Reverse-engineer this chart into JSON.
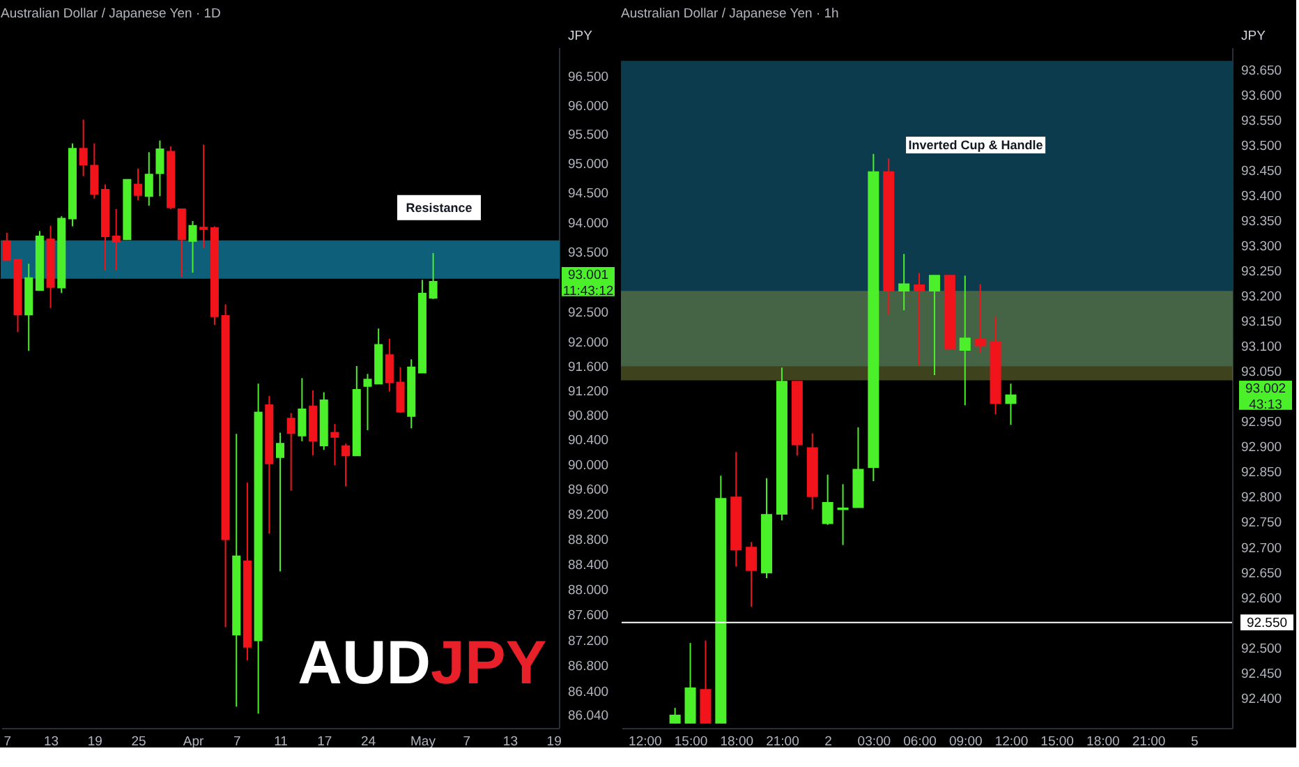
{
  "chart_data": [
    {
      "type": "candlestick",
      "title": "Australian Dollar / Japanese Yen · 1D",
      "ylabel": "JPY",
      "log": true,
      "categories": [
        "7",
        null,
        null,
        null,
        "13",
        null,
        null,
        null,
        "19",
        null,
        null,
        null,
        "25",
        null,
        null,
        null,
        null,
        "Apr",
        null,
        null,
        null,
        "7",
        null,
        null,
        null,
        "11",
        null,
        null,
        null,
        "17",
        null,
        null,
        null,
        "24",
        null,
        null,
        null,
        null,
        "May",
        null,
        null,
        null,
        "7",
        null,
        null,
        null,
        "13",
        null,
        null,
        null,
        "19"
      ],
      "ohlc": [
        [
          93.68,
          93.82,
          93.36,
          93.36
        ],
        [
          93.37,
          93.37,
          92.16,
          92.45
        ],
        [
          92.45,
          93.3,
          91.85,
          93.06
        ],
        [
          92.86,
          93.85,
          92.86,
          93.76
        ],
        [
          93.71,
          93.94,
          92.56,
          92.91
        ],
        [
          92.9,
          94.1,
          92.81,
          94.06
        ],
        [
          94.06,
          95.34,
          93.93,
          95.25
        ],
        [
          95.25,
          95.75,
          94.78,
          94.98
        ],
        [
          94.96,
          95.34,
          94.4,
          94.48
        ],
        [
          94.55,
          94.64,
          93.19,
          93.76
        ],
        [
          93.76,
          94.22,
          93.19,
          93.67
        ],
        [
          93.71,
          94.72,
          93.71,
          94.72
        ],
        [
          94.64,
          94.91,
          94.37,
          94.46
        ],
        [
          94.44,
          95.19,
          94.28,
          94.81
        ],
        [
          94.83,
          95.39,
          94.44,
          95.24
        ],
        [
          95.2,
          95.29,
          94.22,
          94.25
        ],
        [
          94.22,
          94.22,
          93.08,
          93.71
        ],
        [
          93.68,
          94.02,
          93.15,
          93.94
        ],
        [
          93.91,
          95.32,
          93.56,
          93.88
        ],
        [
          93.9,
          93.93,
          92.28,
          92.42
        ],
        [
          92.43,
          92.62,
          87.4,
          88.79
        ],
        [
          87.28,
          90.49,
          86.16,
          88.52
        ],
        [
          88.44,
          89.7,
          86.88,
          87.09
        ],
        [
          87.19,
          91.31,
          86.05,
          90.84
        ],
        [
          90.96,
          91.11,
          88.88,
          90.01
        ],
        [
          90.11,
          90.51,
          88.28,
          90.33
        ],
        [
          90.74,
          90.83,
          89.57,
          90.5
        ],
        [
          90.46,
          91.4,
          90.37,
          90.89
        ],
        [
          90.94,
          91.2,
          90.14,
          90.38
        ],
        [
          90.3,
          91.17,
          90.23,
          91.04
        ],
        [
          90.51,
          90.65,
          89.98,
          90.44
        ],
        [
          90.29,
          90.33,
          89.64,
          90.14
        ],
        [
          90.14,
          91.6,
          90.14,
          91.21
        ],
        [
          91.27,
          91.47,
          90.55,
          91.38
        ],
        [
          91.31,
          92.22,
          91.31,
          91.95
        ],
        [
          91.78,
          92.05,
          91.18,
          91.33
        ],
        [
          91.33,
          91.58,
          90.83,
          90.85
        ],
        [
          90.78,
          91.71,
          90.58,
          91.58
        ],
        [
          91.49,
          93.03,
          91.49,
          92.8
        ],
        [
          92.73,
          93.48,
          92.71,
          93.0
        ],
        null,
        null,
        null,
        null,
        null,
        null,
        null,
        null,
        null,
        null,
        null
      ],
      "colors": [
        "#f2141b",
        "#f2141b",
        "#4cf02a",
        "#4cf02a",
        "#f2141b",
        "#4cf02a",
        "#4cf02a",
        "#f2141b",
        "#f2141b",
        "#f2141b",
        "#f2141b",
        "#4cf02a",
        "#f2141b",
        "#4cf02a",
        "#4cf02a",
        "#f2141b",
        "#f2141b",
        "#4cf02a",
        "#f2141b",
        "#f2141b",
        "#f2141b",
        "#4cf02a",
        "#f2141b",
        "#4cf02a",
        "#f2141b",
        "#4cf02a",
        "#f2141b",
        "#4cf02a",
        "#f2141b",
        "#4cf02a",
        "#f2141b",
        "#f2141b",
        "#4cf02a",
        "#4cf02a",
        "#4cf02a",
        "#f2141b",
        "#f2141b",
        "#4cf02a",
        "#4cf02a",
        "#4cf02a",
        null,
        null,
        null,
        null,
        null,
        null,
        null,
        null,
        null,
        null,
        null
      ],
      "ylim": [
        85.83,
        97.0
      ],
      "yticks": [
        {
          "value": 96.5,
          "label": "96.500"
        },
        {
          "value": 96,
          "label": "96.000"
        },
        {
          "value": 95.5,
          "label": "95.500"
        },
        {
          "value": 95,
          "label": "95.000"
        },
        {
          "value": 94.5,
          "label": "94.500"
        },
        {
          "value": 94,
          "label": "94.000"
        },
        {
          "value": 93.5,
          "label": "93.500"
        },
        {
          "value": 92.5,
          "label": "92.500"
        },
        {
          "value": 92,
          "label": "92.000"
        },
        {
          "value": 91.6,
          "label": "91.600"
        },
        {
          "value": 91.2,
          "label": "91.200"
        },
        {
          "value": 90.8,
          "label": "90.800"
        },
        {
          "value": 90.4,
          "label": "90.400"
        },
        {
          "value": 90,
          "label": "90.000"
        },
        {
          "value": 89.6,
          "label": "89.600"
        },
        {
          "value": 89.2,
          "label": "89.200"
        },
        {
          "value": 88.8,
          "label": "88.800"
        },
        {
          "value": 88.4,
          "label": "88.400"
        },
        {
          "value": 88,
          "label": "88.000"
        },
        {
          "value": 87.6,
          "label": "87.600"
        },
        {
          "value": 87.2,
          "label": "87.200"
        },
        {
          "value": 86.8,
          "label": "86.800"
        },
        {
          "value": 86.4,
          "label": "86.400"
        },
        {
          "value": 86.04,
          "label": "86.040"
        }
      ],
      "bands": [
        {
          "axis": "y",
          "from": 93.06,
          "to": 93.68,
          "label": "Resistance",
          "color": "#0d5f7a"
        }
      ],
      "annotations": [
        "93.001\n11:43:12",
        "AUD",
        "JPY"
      ],
      "grid": false
    },
    {
      "type": "candlestick",
      "title": "Australian Dollar / Japanese Yen · 1h",
      "ylabel": "JPY",
      "categories": [
        null,
        "12:00",
        null,
        null,
        "15:00",
        null,
        null,
        "18:00",
        null,
        null,
        "21:00",
        null,
        null,
        "2",
        null,
        null,
        "03:00",
        null,
        null,
        "06:00",
        null,
        null,
        "09:00",
        null,
        null,
        "12:00",
        null,
        null,
        "15:00",
        null,
        null,
        "18:00",
        null,
        null,
        "21:00",
        null,
        null,
        "5",
        null,
        null
      ],
      "ohlc": [
        null,
        null,
        null,
        [
          92.35,
          92.38,
          92.35,
          92.365
        ],
        [
          92.35,
          92.509,
          92.35,
          92.419
        ],
        [
          92.416,
          92.514,
          92.35,
          92.35
        ],
        [
          92.35,
          92.842,
          92.35,
          92.796
        ],
        [
          92.799,
          92.889,
          92.661,
          92.695
        ],
        [
          92.699,
          92.71,
          92.581,
          92.654
        ],
        [
          92.649,
          92.837,
          92.638,
          92.764
        ],
        [
          92.766,
          93.057,
          92.753,
          93.029
        ],
        [
          93.029,
          93.029,
          92.882,
          92.904
        ],
        [
          92.897,
          92.926,
          92.775,
          92.801
        ],
        [
          92.747,
          92.844,
          92.744,
          92.788
        ],
        [
          92.775,
          92.825,
          92.704,
          92.777
        ],
        [
          92.779,
          92.938,
          92.779,
          92.854
        ],
        [
          92.859,
          93.482,
          92.831,
          93.446
        ],
        [
          93.446,
          93.473,
          93.163,
          93.21
        ],
        [
          93.21,
          93.283,
          93.171,
          93.223
        ],
        [
          93.221,
          93.245,
          93.061,
          93.21
        ],
        [
          93.21,
          93.24,
          93.042,
          93.24
        ],
        [
          93.24,
          93.24,
          93.095,
          93.095
        ],
        [
          93.092,
          93.24,
          92.982,
          93.115
        ],
        [
          93.114,
          93.223,
          93.086,
          93.101
        ],
        [
          93.108,
          93.158,
          92.964,
          92.986
        ],
        [
          92.986,
          93.025,
          92.943,
          93.002
        ],
        null,
        null,
        null,
        null,
        null,
        null,
        null,
        null,
        null,
        null,
        null,
        null,
        null,
        null
      ],
      "colors": [
        null,
        null,
        null,
        "#4cf02a",
        "#4cf02a",
        "#f2141b",
        "#4cf02a",
        "#f2141b",
        "#f2141b",
        "#4cf02a",
        "#4cf02a",
        "#f2141b",
        "#f2141b",
        "#4cf02a",
        "#4cf02a",
        "#4cf02a",
        "#4cf02a",
        "#f2141b",
        "#4cf02a",
        "#f2141b",
        "#4cf02a",
        "#f2141b",
        "#4cf02a",
        "#f2141b",
        "#f2141b",
        "#4cf02a",
        null,
        null,
        null,
        null,
        null,
        null,
        null,
        null,
        null,
        null,
        null,
        null,
        null,
        null
      ],
      "ylim": [
        92.34,
        93.694
      ],
      "yticks": [
        {
          "value": 93.65,
          "label": "93.650"
        },
        {
          "value": 93.6,
          "label": "93.600"
        },
        {
          "value": 93.55,
          "label": "93.550"
        },
        {
          "value": 93.5,
          "label": "93.500"
        },
        {
          "value": 93.45,
          "label": "93.450"
        },
        {
          "value": 93.4,
          "label": "93.400"
        },
        {
          "value": 93.35,
          "label": "93.350"
        },
        {
          "value": 93.3,
          "label": "93.300"
        },
        {
          "value": 93.25,
          "label": "93.250"
        },
        {
          "value": 93.2,
          "label": "93.200"
        },
        {
          "value": 93.15,
          "label": "93.150"
        },
        {
          "value": 93.1,
          "label": "93.100"
        },
        {
          "value": 93.05,
          "label": "93.050"
        },
        {
          "value": 92.95,
          "label": "92.950"
        },
        {
          "value": 92.9,
          "label": "92.900"
        },
        {
          "value": 92.85,
          "label": "92.850"
        },
        {
          "value": 92.8,
          "label": "92.800"
        },
        {
          "value": 92.75,
          "label": "92.750"
        },
        {
          "value": 92.7,
          "label": "92.700"
        },
        {
          "value": 92.65,
          "label": "92.650"
        },
        {
          "value": 92.6,
          "label": "92.600"
        },
        {
          "value": 92.5,
          "label": "92.500"
        },
        {
          "value": 92.45,
          "label": "92.450"
        },
        {
          "value": 92.4,
          "label": "92.400"
        }
      ],
      "bands": [
        {
          "axis": "y",
          "from": 93.061,
          "to": 93.666,
          "color": "#0b3b4c"
        },
        {
          "axis": "y",
          "from": 93.033,
          "to": 93.208,
          "color": "#8c9640"
        }
      ],
      "ref_lines": [
        {
          "axis": "y",
          "value": 92.55,
          "label": "92.550",
          "color": "#ffffff"
        }
      ],
      "annotations": [
        "93.002\n43:13",
        "Inverted Cup & Handle"
      ],
      "grid": false
    }
  ]
}
